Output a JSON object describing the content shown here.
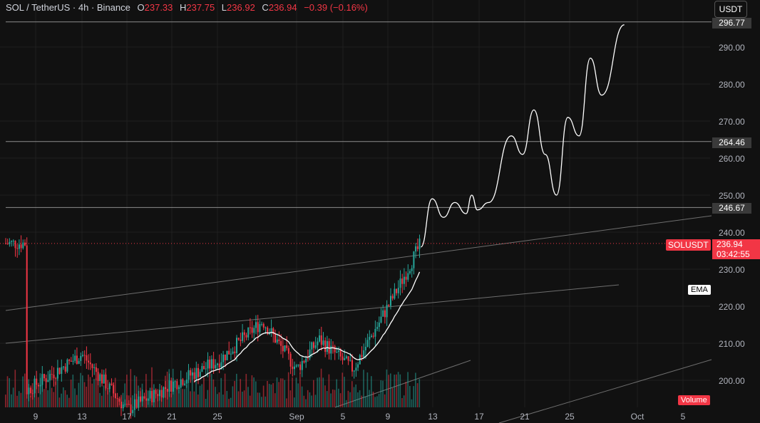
{
  "header": {
    "symbol": "SOL / TetherUS · 4h · Binance",
    "open_label": "O",
    "open": "237.33",
    "high_label": "H",
    "high": "237.75",
    "low_label": "L",
    "low": "236.92",
    "close_label": "C",
    "close": "236.94",
    "change": "−0.39 (−0.16%)"
  },
  "currency_button": "USDT",
  "price_axis": [
    "290.00",
    "280.00",
    "270.00",
    "260.00",
    "250.00",
    "240.00",
    "230.00",
    "220.00",
    "210.00",
    "200.00"
  ],
  "level_labels": {
    "top": "296.77",
    "mid": "264.46",
    "low": "246.67"
  },
  "current": {
    "tag": "SOLUSDT",
    "price": "236.94",
    "countdown": "03:42:55"
  },
  "indicator_tags": {
    "ema": "EMA",
    "volume": "Volume"
  },
  "time_axis": [
    "9",
    "13",
    "17",
    "21",
    "25",
    "Sep",
    "5",
    "9",
    "13",
    "17",
    "21",
    "25",
    "Oct",
    "5"
  ],
  "colors": {
    "up": "#26a69a",
    "down": "#f23645",
    "bg": "#111111",
    "grid": "#1f1f1f",
    "line": "#ffffff"
  },
  "chart_data": {
    "type": "candlestick",
    "symbol": "SOL / TetherUS",
    "interval": "4h",
    "exchange": "Binance",
    "ylim": [
      193,
      300
    ],
    "last_price": 236.94,
    "horizontal_levels": [
      296.77,
      264.46,
      246.67
    ],
    "price_candles_approx": [
      {
        "date": "Aug 8",
        "close": 197
      },
      {
        "date": "Aug 13",
        "close": 207
      },
      {
        "date": "Aug 17",
        "close": 192
      },
      {
        "date": "Aug 21",
        "close": 199
      },
      {
        "date": "Aug 25",
        "close": 205
      },
      {
        "date": "Aug 29",
        "close": 216
      },
      {
        "date": "Sep 1",
        "close": 203
      },
      {
        "date": "Sep 3",
        "close": 211
      },
      {
        "date": "Sep 6",
        "close": 203
      },
      {
        "date": "Sep 8",
        "close": 214
      },
      {
        "date": "Sep 10",
        "close": 225
      },
      {
        "date": "Sep 12",
        "close": 237
      }
    ],
    "projection_line": [
      {
        "date": "Sep 12",
        "price": 236
      },
      {
        "date": "Sep 13",
        "price": 249
      },
      {
        "date": "Sep 14",
        "price": 244
      },
      {
        "date": "Sep 15",
        "price": 248
      },
      {
        "date": "Sep 16",
        "price": 245
      },
      {
        "date": "Sep 16.5",
        "price": 250
      },
      {
        "date": "Sep 17",
        "price": 246
      },
      {
        "date": "Sep 18",
        "price": 248
      },
      {
        "date": "Sep 20",
        "price": 266
      },
      {
        "date": "Sep 21",
        "price": 261
      },
      {
        "date": "Sep 22",
        "price": 273
      },
      {
        "date": "Sep 23",
        "price": 261
      },
      {
        "date": "Sep 24",
        "price": 250
      },
      {
        "date": "Sep 25",
        "price": 271
      },
      {
        "date": "Sep 26",
        "price": 266
      },
      {
        "date": "Sep 27",
        "price": 287
      },
      {
        "date": "Sep 28",
        "price": 277
      },
      {
        "date": "Sep 30",
        "price": 296
      }
    ]
  }
}
